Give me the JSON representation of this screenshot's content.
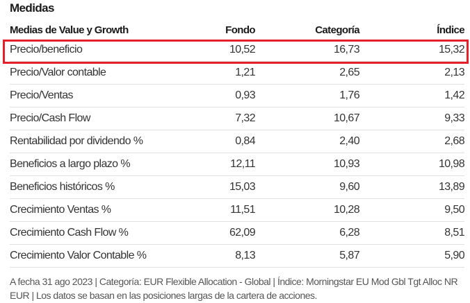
{
  "title": "Medidas",
  "table": {
    "headers": [
      "Medias de Value y Growth",
      "Fondo",
      "Categoría",
      "Índice"
    ],
    "rows": [
      [
        "Precio/beneficio",
        "10,52",
        "16,73",
        "15,32"
      ],
      [
        "Precio/Valor contable",
        "1,21",
        "2,65",
        "2,13"
      ],
      [
        "Precio/Ventas",
        "0,93",
        "1,76",
        "1,42"
      ],
      [
        "Precio/Cash Flow",
        "7,32",
        "10,67",
        "9,33"
      ],
      [
        "Rentabilidad por dividendo %",
        "0,84",
        "2,40",
        "2,68"
      ],
      [
        "Beneficios a largo plazo %",
        "12,11",
        "10,93",
        "10,98"
      ],
      [
        "Beneficios históricos %",
        "15,03",
        "9,60",
        "13,89"
      ],
      [
        "Crecimiento Ventas %",
        "11,51",
        "10,28",
        "9,50"
      ],
      [
        "Crecimiento Cash Flow %",
        "62,09",
        "6,28",
        "8,51"
      ],
      [
        "Crecimiento Valor Contable %",
        "8,13",
        "5,87",
        "5,90"
      ]
    ]
  },
  "footer": "A fecha 31 ago 2023 | Categoría: EUR Flexible Allocation - Global | Índice: Morningstar EU Mod Gbl Tgt Alloc NR EUR | Los datos se basan en las posiciones largas de la cartera de acciones.",
  "highlight_color": "#e5202a"
}
